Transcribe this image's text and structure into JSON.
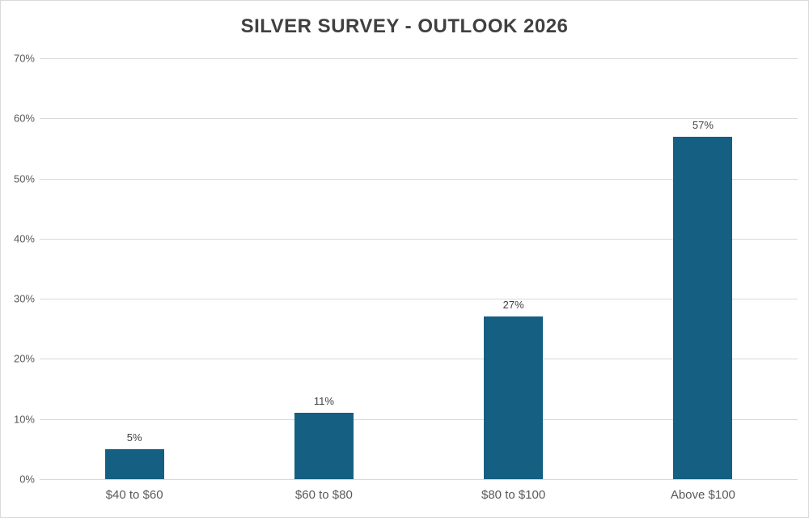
{
  "chart_data": {
    "type": "bar",
    "title": "SILVER SURVEY - OUTLOOK 2026",
    "categories": [
      "$40 to $60",
      "$60 to $80",
      "$80 to $100",
      "Above $100"
    ],
    "values": [
      5,
      11,
      27,
      57
    ],
    "value_labels": [
      "5%",
      "11%",
      "27%",
      "57%"
    ],
    "xlabel": "",
    "ylabel": "",
    "ylim": [
      0,
      70
    ],
    "yticks": [
      0,
      10,
      20,
      30,
      40,
      50,
      60,
      70
    ],
    "ytick_labels": [
      "0%",
      "10%",
      "20%",
      "30%",
      "40%",
      "50%",
      "60%",
      "70%"
    ],
    "grid": "horizontal",
    "legend": "none",
    "colors": {
      "bar": "#156082",
      "gridline": "#d9d9d9",
      "title_text": "#404040",
      "tick_text": "#595959",
      "value_label_text": "#404040",
      "background": "#ffffff"
    }
  }
}
